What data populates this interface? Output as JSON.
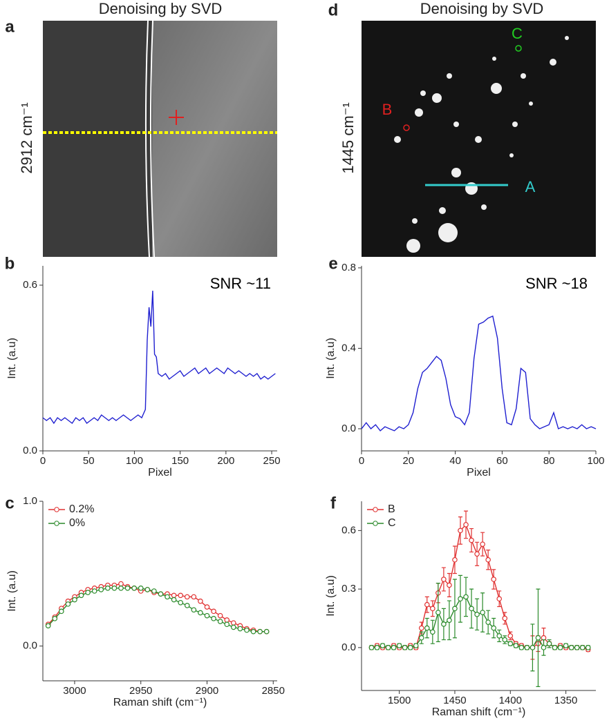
{
  "chart_data": [
    {
      "type": "image",
      "label": "a",
      "title": "Denoising by SVD",
      "ylabel": "2912 cm⁻¹",
      "annotations": []
    },
    {
      "type": "line",
      "label": "b",
      "annotations": [
        {
          "text": "SNR ~11",
          "color": "#000000"
        }
      ],
      "xlabel": "Pixel",
      "ylabel": "Int. (a.u)",
      "color": "#1f1fd0",
      "xlim": [
        0,
        256
      ],
      "xticks": [
        0,
        50,
        100,
        150,
        200,
        250
      ],
      "ylim": [
        0,
        0.67
      ],
      "yticks": [
        {
          "value": 0,
          "label": "0.0"
        },
        0.6
      ],
      "x": [
        0,
        4,
        8,
        12,
        16,
        20,
        24,
        28,
        32,
        36,
        40,
        44,
        48,
        52,
        56,
        60,
        64,
        68,
        72,
        76,
        80,
        84,
        88,
        92,
        96,
        100,
        104,
        108,
        112,
        114,
        116,
        118,
        120,
        122,
        124,
        126,
        130,
        134,
        138,
        142,
        146,
        150,
        154,
        158,
        162,
        166,
        170,
        174,
        178,
        182,
        186,
        190,
        194,
        198,
        202,
        206,
        210,
        214,
        218,
        222,
        226,
        230,
        234,
        238,
        242,
        246,
        250,
        254
      ],
      "values": [
        0.12,
        0.11,
        0.12,
        0.1,
        0.12,
        0.11,
        0.12,
        0.11,
        0.1,
        0.12,
        0.11,
        0.12,
        0.1,
        0.11,
        0.12,
        0.11,
        0.13,
        0.12,
        0.11,
        0.12,
        0.11,
        0.12,
        0.13,
        0.12,
        0.11,
        0.12,
        0.13,
        0.12,
        0.15,
        0.4,
        0.52,
        0.45,
        0.58,
        0.35,
        0.34,
        0.28,
        0.27,
        0.28,
        0.26,
        0.27,
        0.28,
        0.29,
        0.27,
        0.28,
        0.29,
        0.3,
        0.28,
        0.29,
        0.3,
        0.28,
        0.29,
        0.3,
        0.29,
        0.28,
        0.3,
        0.29,
        0.28,
        0.29,
        0.28,
        0.27,
        0.28,
        0.27,
        0.28,
        0.26,
        0.27,
        0.26,
        0.27,
        0.28
      ]
    },
    {
      "type": "line",
      "label": "c",
      "markers": true,
      "legend": "upper left",
      "xlabel": "Raman shift (cm⁻¹)",
      "ylabel": "Int. (a.u)",
      "xlim": [
        3024,
        2847
      ],
      "xticks": [
        3000,
        2950,
        2900,
        2850
      ],
      "ylim": [
        -0.24,
        1.0
      ],
      "yticks": [
        {
          "value": 0,
          "label": "0.0"
        },
        {
          "value": 1,
          "label": "1.0"
        }
      ],
      "x": [
        3020,
        3015,
        3010,
        3005,
        3000,
        2995,
        2990,
        2985,
        2980,
        2975,
        2970,
        2965,
        2960,
        2955,
        2950,
        2945,
        2940,
        2935,
        2930,
        2925,
        2920,
        2915,
        2910,
        2905,
        2900,
        2895,
        2890,
        2885,
        2880,
        2875,
        2870,
        2865,
        2860,
        2855
      ],
      "series": [
        {
          "name": "0.2%",
          "color": "#e03030",
          "values": [
            0.15,
            0.2,
            0.26,
            0.31,
            0.34,
            0.37,
            0.39,
            0.4,
            0.41,
            0.42,
            0.42,
            0.43,
            0.41,
            0.4,
            0.38,
            0.39,
            0.37,
            0.36,
            0.36,
            0.35,
            0.35,
            0.34,
            0.34,
            0.31,
            0.27,
            0.24,
            0.21,
            0.18,
            0.16,
            0.14,
            0.12,
            0.11,
            0.1,
            0.1
          ]
        },
        {
          "name": "0%",
          "color": "#2a8a2a",
          "values": [
            0.14,
            0.19,
            0.24,
            0.29,
            0.32,
            0.35,
            0.37,
            0.38,
            0.39,
            0.4,
            0.4,
            0.4,
            0.4,
            0.4,
            0.4,
            0.39,
            0.38,
            0.36,
            0.34,
            0.32,
            0.3,
            0.28,
            0.25,
            0.23,
            0.21,
            0.19,
            0.17,
            0.15,
            0.13,
            0.12,
            0.11,
            0.1,
            0.1,
            0.1
          ]
        }
      ]
    },
    {
      "type": "image",
      "label": "d",
      "title": "Denoising by SVD",
      "ylabel": "1445 cm⁻¹",
      "annotations": [
        {
          "text": "A",
          "color": "#33cccc"
        },
        {
          "text": "B",
          "color": "#e02020"
        },
        {
          "text": "C",
          "color": "#22cc22"
        }
      ]
    },
    {
      "type": "line",
      "label": "e",
      "annotations": [
        {
          "text": "SNR ~18",
          "color": "#000000"
        }
      ],
      "xlabel": "Pixel",
      "ylabel": "Int. (a.u)",
      "color": "#1f1fd0",
      "xlim": [
        0,
        100
      ],
      "xticks": [
        0,
        20,
        40,
        60,
        80,
        100
      ],
      "ylim": [
        -0.11,
        0.81
      ],
      "yticks": [
        {
          "value": 0,
          "label": "0.0"
        },
        {
          "value": 0.4,
          "label": "0.4"
        },
        {
          "value": 0.8,
          "label": "0.8"
        }
      ],
      "x": [
        0,
        2,
        4,
        6,
        8,
        10,
        12,
        14,
        16,
        18,
        20,
        22,
        24,
        26,
        28,
        30,
        32,
        34,
        36,
        38,
        40,
        42,
        44,
        46,
        48,
        50,
        52,
        54,
        56,
        58,
        60,
        62,
        64,
        66,
        68,
        70,
        72,
        74,
        76,
        78,
        80,
        82,
        84,
        86,
        88,
        90,
        92,
        94,
        96,
        98,
        100
      ],
      "values": [
        0.0,
        0.03,
        0.0,
        0.02,
        -0.01,
        0.01,
        0.0,
        -0.01,
        0.01,
        0.0,
        0.02,
        0.08,
        0.2,
        0.28,
        0.3,
        0.33,
        0.36,
        0.34,
        0.25,
        0.12,
        0.06,
        0.05,
        0.02,
        0.08,
        0.35,
        0.52,
        0.53,
        0.55,
        0.56,
        0.45,
        0.2,
        0.03,
        0.02,
        0.1,
        0.3,
        0.28,
        0.05,
        0.02,
        0.0,
        0.01,
        0.02,
        0.08,
        0.0,
        0.01,
        0.0,
        0.01,
        0.0,
        0.02,
        0.0,
        0.01,
        0.0
      ]
    },
    {
      "type": "line",
      "label": "f",
      "markers": true,
      "legend": "upper left",
      "xlabel": "Raman shift (cm⁻¹)",
      "ylabel": "Int. (a.u)",
      "xlim": [
        1534,
        1323
      ],
      "xticks": [
        1500,
        1450,
        1400,
        1350
      ],
      "ylim": [
        -0.22,
        0.75
      ],
      "yticks": [
        {
          "value": 0,
          "label": "0.0"
        },
        {
          "value": 0.3,
          "label": "0.3"
        },
        {
          "value": 0.6,
          "label": "0.6"
        }
      ],
      "x": [
        1525,
        1520,
        1515,
        1510,
        1505,
        1500,
        1495,
        1490,
        1485,
        1480,
        1475,
        1470,
        1465,
        1460,
        1455,
        1450,
        1445,
        1440,
        1435,
        1430,
        1425,
        1420,
        1415,
        1410,
        1405,
        1400,
        1395,
        1390,
        1385,
        1380,
        1375,
        1370,
        1365,
        1360,
        1355,
        1350,
        1345,
        1340,
        1335,
        1330
      ],
      "series": [
        {
          "name": "B",
          "color": "#e03030",
          "values": [
            0.0,
            0.01,
            0.0,
            0.0,
            0.01,
            0.0,
            0.0,
            0.01,
            0.0,
            0.1,
            0.22,
            0.2,
            0.28,
            0.35,
            0.32,
            0.45,
            0.6,
            0.63,
            0.55,
            0.48,
            0.53,
            0.45,
            0.35,
            0.25,
            0.15,
            0.06,
            0.02,
            0.01,
            0.0,
            0.0,
            0.02,
            0.05,
            0.02,
            0.0,
            0.01,
            0.0,
            0.0,
            0.0,
            0.0,
            -0.01
          ],
          "errors": [
            0.01,
            0.01,
            0.01,
            0.01,
            0.01,
            0.01,
            0.01,
            0.01,
            0.01,
            0.03,
            0.04,
            0.04,
            0.05,
            0.06,
            0.06,
            0.07,
            0.07,
            0.07,
            0.06,
            0.06,
            0.06,
            0.05,
            0.05,
            0.04,
            0.03,
            0.02,
            0.01,
            0.01,
            0.01,
            0.06,
            0.04,
            0.05,
            0.01,
            0.01,
            0.01,
            0.01,
            0.01,
            0.01,
            0.01,
            0.01
          ]
        },
        {
          "name": "C",
          "color": "#2a8a2a",
          "values": [
            0.0,
            0.0,
            0.01,
            0.0,
            0.0,
            0.01,
            0.0,
            0.0,
            0.01,
            0.05,
            0.1,
            0.08,
            0.18,
            0.12,
            0.14,
            0.2,
            0.25,
            0.26,
            0.2,
            0.17,
            0.18,
            0.13,
            0.1,
            0.06,
            0.04,
            0.02,
            0.01,
            0.0,
            0.0,
            0.0,
            0.05,
            0.0,
            0.02,
            0.0,
            0.0,
            0.01,
            0.0,
            0.0,
            0.0,
            0.0
          ],
          "errors": [
            0.01,
            0.01,
            0.01,
            0.01,
            0.01,
            0.01,
            0.01,
            0.01,
            0.01,
            0.03,
            0.05,
            0.06,
            0.15,
            0.08,
            0.1,
            0.15,
            0.12,
            0.1,
            0.1,
            0.08,
            0.1,
            0.06,
            0.05,
            0.03,
            0.02,
            0.01,
            0.01,
            0.01,
            0.01,
            0.12,
            0.25,
            0.04,
            0.02,
            0.01,
            0.01,
            0.01,
            0.01,
            0.01,
            0.01,
            0.01
          ]
        }
      ]
    }
  ]
}
